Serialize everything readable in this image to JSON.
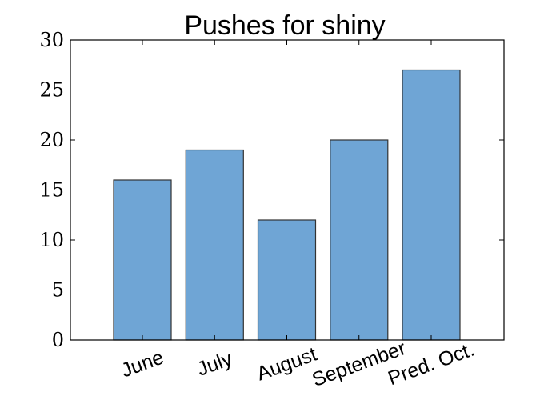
{
  "chart_data": {
    "type": "bar",
    "title": "Pushes for shiny",
    "xlabel": "",
    "ylabel": "",
    "categories": [
      "June",
      "July",
      "August",
      "September",
      "Pred. Oct."
    ],
    "values": [
      16,
      19,
      12,
      20,
      27
    ],
    "ylim": [
      0,
      30
    ],
    "yticks": [
      0,
      5,
      10,
      15,
      20,
      25,
      30
    ],
    "x_tick_rotation_deg": -20,
    "grid": false,
    "legend": false,
    "colors": {
      "bar_fill": "#6fa5d5",
      "bar_edge": "#333333",
      "axes": "#000000"
    }
  }
}
